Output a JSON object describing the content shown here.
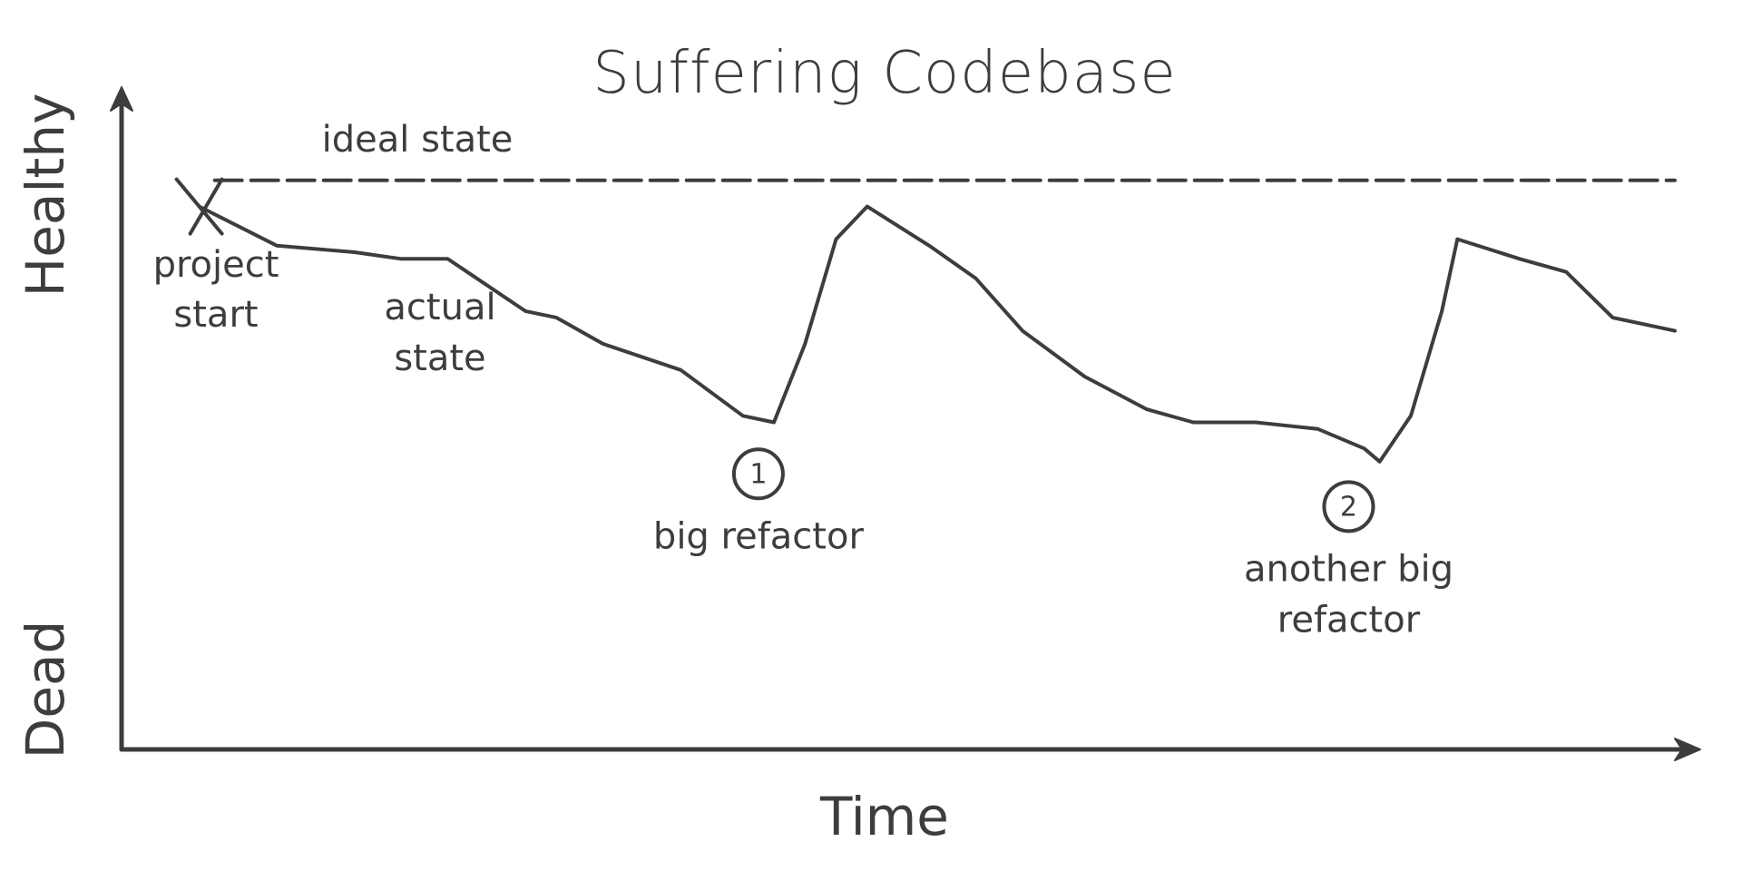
{
  "chart_data": {
    "type": "line",
    "title": "Suffering Codebase",
    "xlabel": "Time",
    "ylabel_top": "Healthy",
    "ylabel_bottom": "Dead",
    "xlim": [
      0,
      100
    ],
    "ylim": [
      0,
      100
    ],
    "grid": false,
    "ideal": {
      "label": "ideal state",
      "y": 87
    },
    "series": [
      {
        "label": "actual state",
        "points": [
          [
            5,
            83
          ],
          [
            10,
            77
          ],
          [
            15,
            76
          ],
          [
            18,
            75
          ],
          [
            21,
            75
          ],
          [
            26,
            67
          ],
          [
            28,
            66
          ],
          [
            31,
            62
          ],
          [
            36,
            58
          ],
          [
            40,
            51
          ],
          [
            42,
            50
          ],
          [
            44,
            62
          ],
          [
            45,
            70
          ],
          [
            46,
            78
          ],
          [
            48,
            83
          ],
          [
            52,
            77
          ],
          [
            55,
            72
          ],
          [
            58,
            64
          ],
          [
            62,
            57
          ],
          [
            66,
            52
          ],
          [
            69,
            50
          ],
          [
            73,
            50
          ],
          [
            77,
            49
          ],
          [
            80,
            46
          ],
          [
            81,
            44
          ],
          [
            83,
            51
          ],
          [
            85,
            67
          ],
          [
            86,
            78
          ],
          [
            90,
            75
          ],
          [
            93,
            73
          ],
          [
            96,
            66
          ],
          [
            100,
            64
          ]
        ]
      }
    ],
    "start_marker": {
      "label_lines": [
        "project",
        "start"
      ]
    },
    "annotations": [
      {
        "number": "1",
        "label_lines": [
          "big refactor"
        ],
        "x": 41
      },
      {
        "number": "2",
        "label_lines": [
          "another big",
          "refactor"
        ],
        "x": 79
      }
    ],
    "colors": {
      "stroke": "#3d3d3d",
      "background": "#ffffff"
    }
  }
}
